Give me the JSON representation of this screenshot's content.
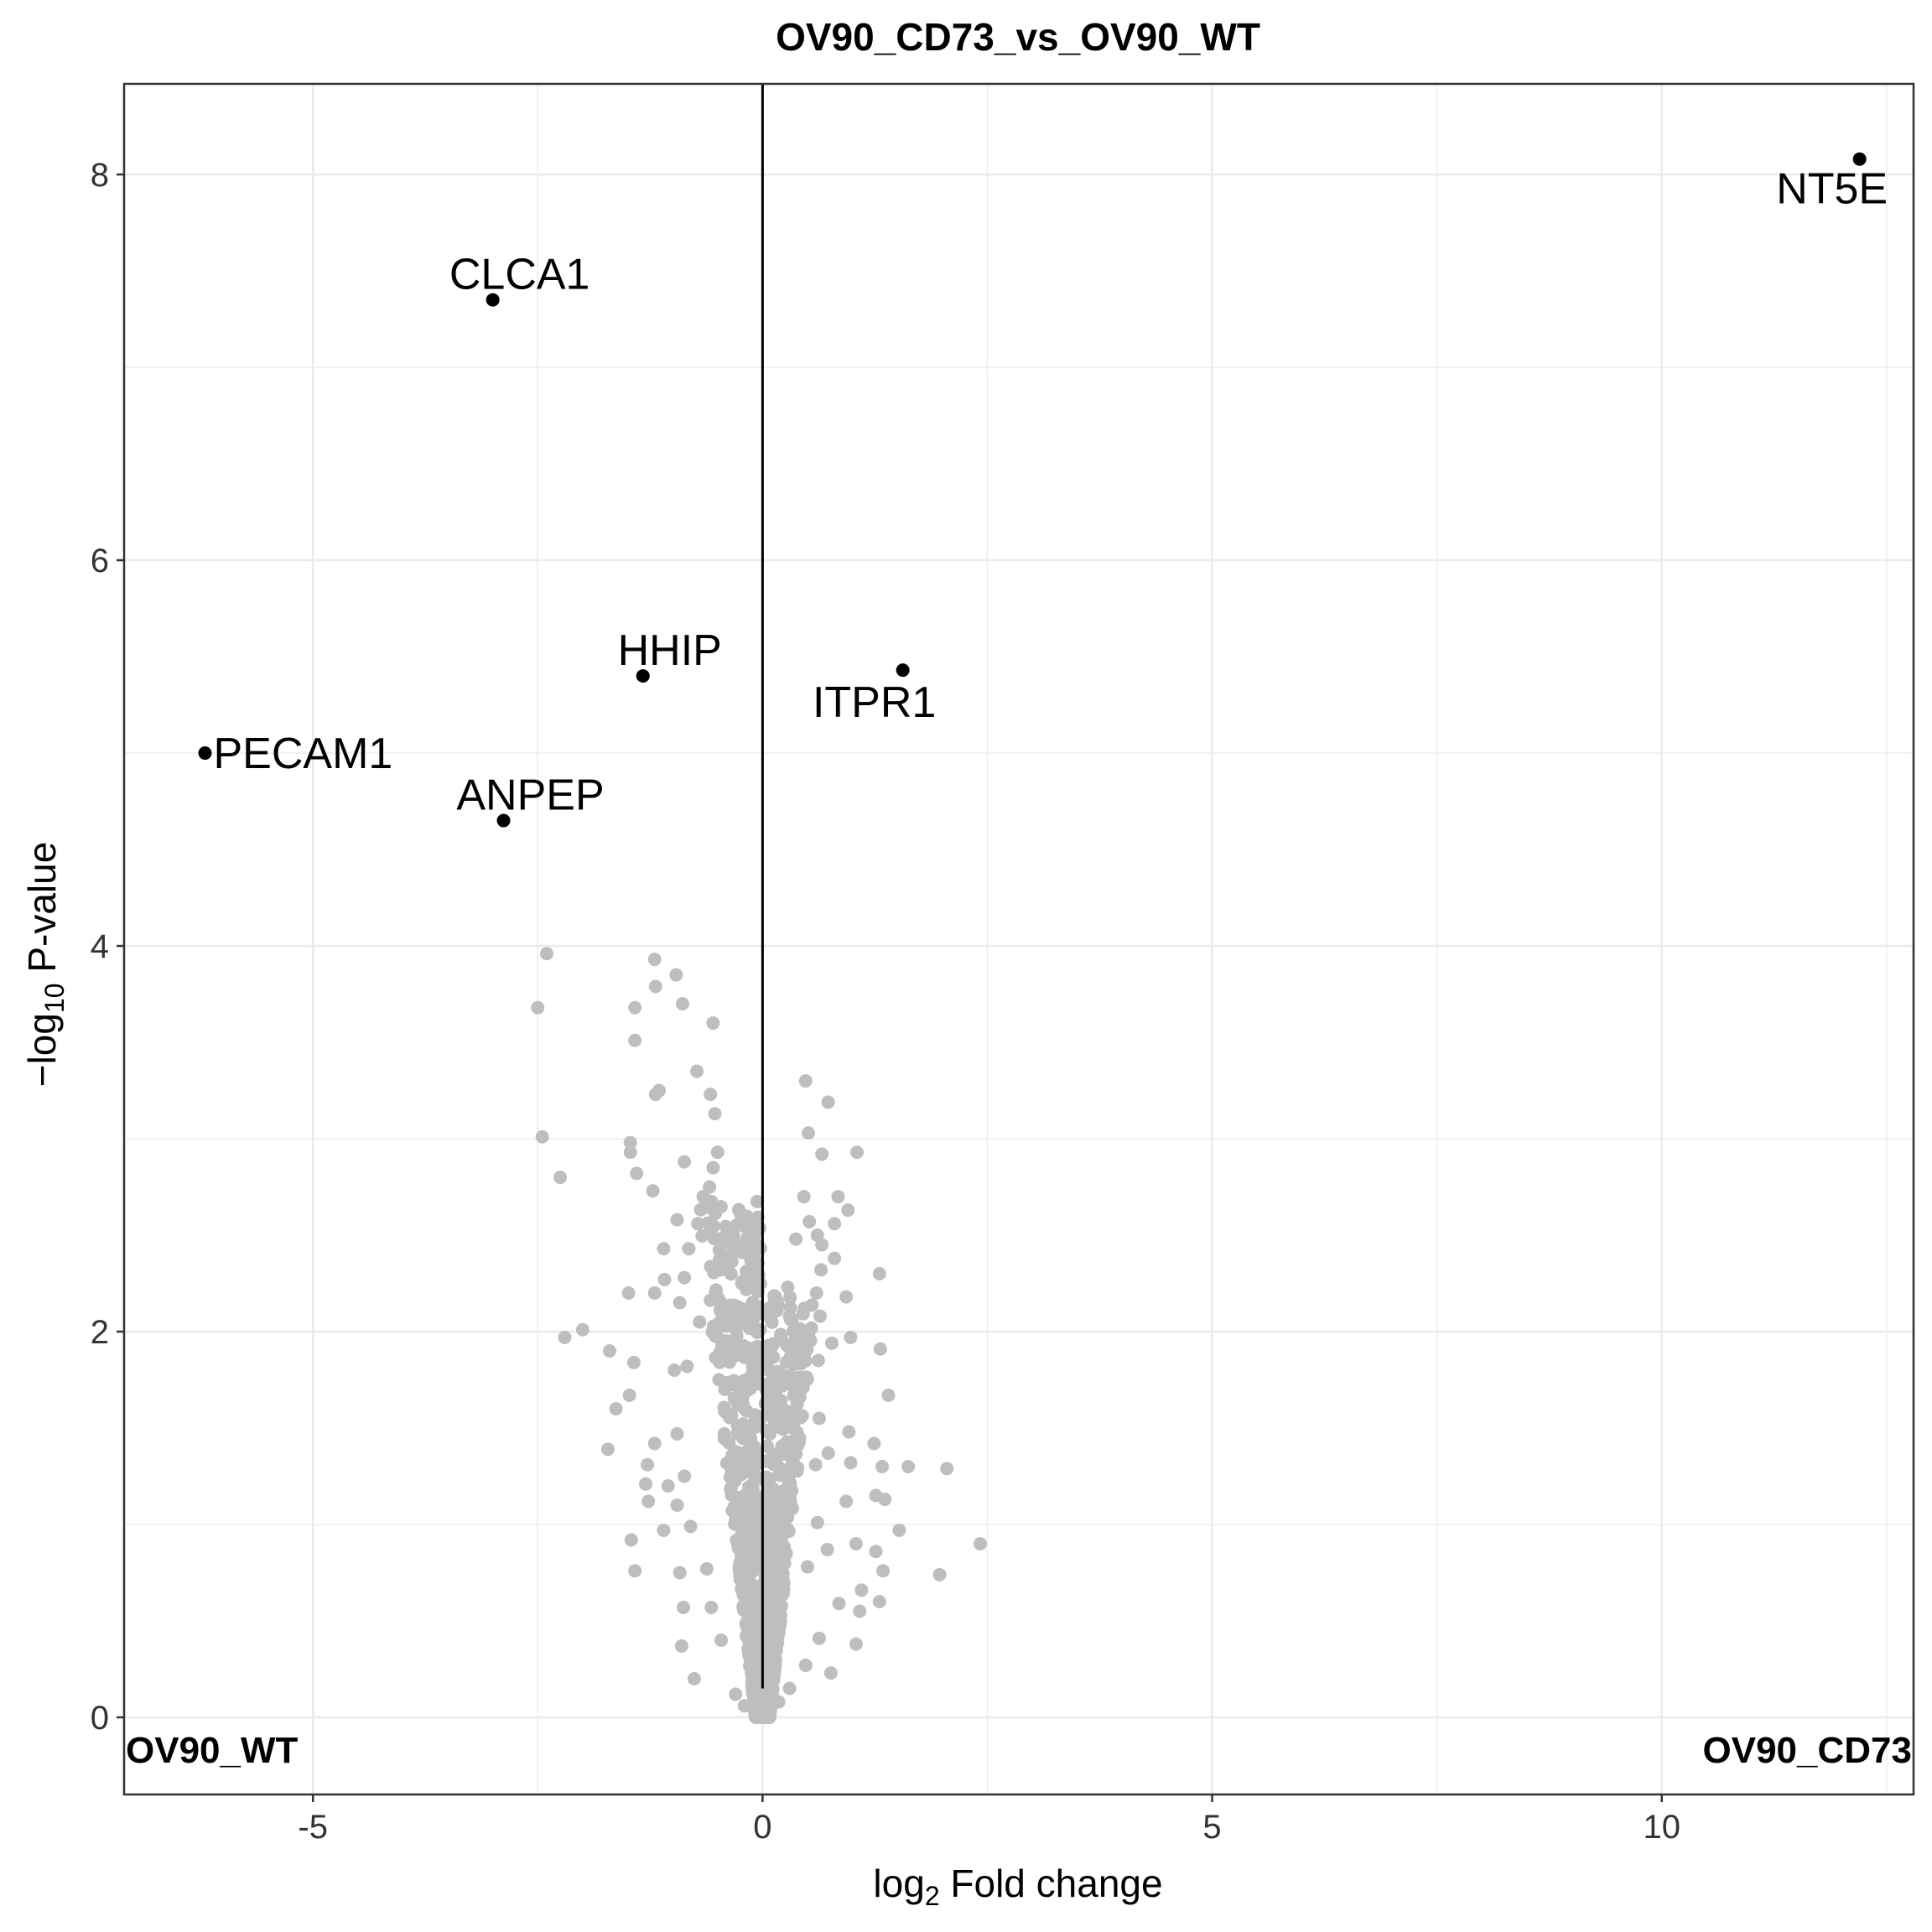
{
  "chart_data": {
    "type": "scatter",
    "title": "OV90_CD73_vs_OV90_WT",
    "xlabel_main": "log",
    "xlabel_sub": "2",
    "xlabel_rest": " Fold change",
    "ylabel_main": "−log",
    "ylabel_sub": "10",
    "ylabel_rest": " P-value",
    "xlim": [
      -7.1,
      12.8
    ],
    "ylim": [
      -0.4,
      8.47
    ],
    "x_ticks": [
      -5,
      0,
      5,
      10
    ],
    "x_tick_labels": [
      "-5",
      "0",
      "5",
      "10"
    ],
    "y_ticks": [
      0,
      2,
      4,
      6,
      8
    ],
    "y_tick_labels": [
      "0",
      "2",
      "4",
      "6",
      "8"
    ],
    "grid": true,
    "vline_x": 0,
    "left_group_label": "OV90_WT",
    "right_group_label": "OV90_CD73",
    "colors": {
      "significant": "#000000",
      "not_significant": "#bebebe",
      "grid": "#ebebeb",
      "border": "#333333"
    },
    "significant_points": [
      {
        "gene": "NT5E",
        "x": 12.2,
        "y": 8.08
      },
      {
        "gene": "CLCA1",
        "x": -3.0,
        "y": 7.35
      },
      {
        "gene": "HHIP",
        "x": -1.33,
        "y": 5.4
      },
      {
        "gene": "ITPR1",
        "x": 1.56,
        "y": 5.43
      },
      {
        "gene": "PECAM1",
        "x": -6.2,
        "y": 5.0
      },
      {
        "gene": "ANPEP",
        "x": -2.88,
        "y": 4.65
      }
    ],
    "other_points": [
      [
        -2.4,
        3.96
      ],
      [
        -2.5,
        3.68
      ],
      [
        -1.2,
        3.93
      ],
      [
        -1.19,
        3.79
      ],
      [
        -0.96,
        3.85
      ],
      [
        -1.42,
        3.68
      ],
      [
        -0.89,
        3.7
      ],
      [
        -0.55,
        3.6
      ],
      [
        -1.42,
        3.51
      ],
      [
        -0.73,
        3.35
      ],
      [
        -0.58,
        3.23
      ],
      [
        -1.15,
        3.25
      ],
      [
        -1.19,
        3.23
      ],
      [
        -0.53,
        3.13
      ],
      [
        0.48,
        3.3
      ],
      [
        0.73,
        3.19
      ],
      [
        -2.45,
        3.01
      ],
      [
        -1.47,
        2.98
      ],
      [
        -1.47,
        2.93
      ],
      [
        -0.5,
        2.93
      ],
      [
        0.51,
        3.03
      ],
      [
        1.05,
        2.93
      ],
      [
        -0.87,
        2.88
      ],
      [
        -1.4,
        2.82
      ],
      [
        -0.55,
        2.85
      ],
      [
        0.66,
        2.92
      ],
      [
        -2.25,
        2.8
      ],
      [
        -1.22,
        2.73
      ],
      [
        -0.59,
        2.75
      ],
      [
        -0.66,
        2.7
      ],
      [
        0.84,
        2.7
      ],
      [
        -0.95,
        2.58
      ],
      [
        0.46,
        2.7
      ],
      [
        0.95,
        2.63
      ],
      [
        -0.72,
        2.56
      ],
      [
        0.8,
        2.56
      ],
      [
        0.66,
        2.45
      ],
      [
        -1.1,
        2.43
      ],
      [
        -0.82,
        2.43
      ],
      [
        0.52,
        2.57
      ],
      [
        0.61,
        2.5
      ],
      [
        0.37,
        2.48
      ],
      [
        0.65,
        2.32
      ],
      [
        0.8,
        2.38
      ],
      [
        1.3,
        2.3
      ],
      [
        -1.49,
        2.2
      ],
      [
        -1.2,
        2.2
      ],
      [
        -1.09,
        2.27
      ],
      [
        -0.92,
        2.15
      ],
      [
        -0.87,
        2.28
      ],
      [
        0.28,
        2.23
      ],
      [
        0.6,
        2.2
      ],
      [
        0.93,
        2.18
      ],
      [
        -2.0,
        2.01
      ],
      [
        -2.2,
        1.97
      ],
      [
        -1.7,
        1.9
      ],
      [
        -1.43,
        1.84
      ],
      [
        -0.7,
        2.05
      ],
      [
        0.3,
        2.08
      ],
      [
        0.64,
        2.08
      ],
      [
        0.98,
        1.97
      ],
      [
        0.77,
        1.94
      ],
      [
        1.31,
        1.91
      ],
      [
        -1.48,
        1.67
      ],
      [
        -1.63,
        1.6
      ],
      [
        -0.98,
        1.8
      ],
      [
        -0.84,
        1.82
      ],
      [
        0.35,
        1.83
      ],
      [
        0.62,
        1.85
      ],
      [
        0.4,
        1.67
      ],
      [
        1.4,
        1.67
      ],
      [
        -1.2,
        1.42
      ],
      [
        -1.72,
        1.39
      ],
      [
        -0.95,
        1.47
      ],
      [
        0.63,
        1.55
      ],
      [
        0.96,
        1.48
      ],
      [
        1.24,
        1.42
      ],
      [
        -1.28,
        1.31
      ],
      [
        -1.3,
        1.21
      ],
      [
        -1.05,
        1.2
      ],
      [
        -0.87,
        1.25
      ],
      [
        0.39,
        1.41
      ],
      [
        0.59,
        1.31
      ],
      [
        0.73,
        1.37
      ],
      [
        0.98,
        1.32
      ],
      [
        1.33,
        1.3
      ],
      [
        1.62,
        1.3
      ],
      [
        2.05,
        1.29
      ],
      [
        -1.27,
        1.12
      ],
      [
        -0.95,
        1.1
      ],
      [
        -1.46,
        0.92
      ],
      [
        -1.1,
        0.97
      ],
      [
        -0.8,
        0.99
      ],
      [
        0.61,
        1.01
      ],
      [
        0.93,
        1.12
      ],
      [
        1.26,
        1.15
      ],
      [
        1.36,
        1.13
      ],
      [
        1.52,
        0.97
      ],
      [
        -1.42,
        0.76
      ],
      [
        -0.92,
        0.75
      ],
      [
        -0.62,
        0.77
      ],
      [
        0.5,
        0.78
      ],
      [
        0.72,
        0.87
      ],
      [
        1.04,
        0.9
      ],
      [
        1.26,
        0.86
      ],
      [
        1.97,
        0.74
      ],
      [
        2.42,
        0.9
      ],
      [
        1.34,
        0.76
      ],
      [
        -0.88,
        0.57
      ],
      [
        -0.57,
        0.57
      ],
      [
        0.85,
        0.59
      ],
      [
        1.1,
        0.66
      ],
      [
        1.3,
        0.6
      ],
      [
        -0.9,
        0.37
      ],
      [
        -0.46,
        0.4
      ],
      [
        0.63,
        0.41
      ],
      [
        1.08,
        0.55
      ],
      [
        1.04,
        0.38
      ],
      [
        -0.76,
        0.2
      ],
      [
        0.48,
        0.27
      ],
      [
        0.76,
        0.23
      ],
      [
        -0.3,
        0.12
      ],
      [
        0.3,
        0.15
      ],
      [
        -0.08,
        0.05
      ],
      [
        0.05,
        0.04
      ],
      [
        -0.2,
        0.06
      ],
      [
        0.18,
        0.08
      ]
    ]
  }
}
